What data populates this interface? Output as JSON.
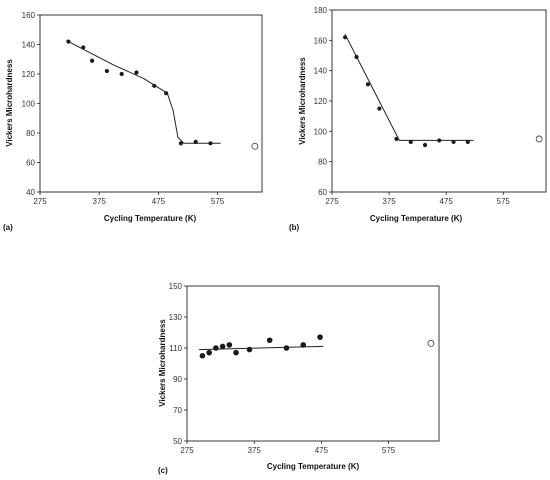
{
  "chart_data": [
    {
      "type": "scatter",
      "panel_label": "(a)",
      "xlabel": "Cycling Temperature (K)",
      "ylabel": "Vickers Microhardness",
      "xlim": [
        275,
        650
      ],
      "ylim": [
        40,
        160
      ],
      "xticks": [
        275,
        375,
        475,
        575
      ],
      "xtick_labels": [
        "275",
        "375",
        "475",
        "575"
      ],
      "yticks": [
        40,
        60,
        80,
        100,
        120,
        140,
        160
      ],
      "ytick_labels": [
        "40",
        "60",
        "80",
        "100",
        "120",
        "140",
        "160"
      ],
      "grid": false,
      "series": [
        {
          "x": [
            323,
            348,
            363,
            388,
            413,
            438,
            468,
            488,
            513,
            538,
            563
          ],
          "y": [
            142,
            138,
            129,
            122,
            120,
            121,
            112,
            107,
            73,
            74,
            73
          ]
        }
      ],
      "trend_line": {
        "x": [
          323,
          400,
          450,
          490,
          500,
          508,
          518,
          580
        ],
        "y": [
          142,
          126,
          117,
          107,
          95,
          77,
          73,
          73
        ]
      },
      "open_marker": {
        "x": 638,
        "y": 71
      }
    },
    {
      "type": "scatter",
      "panel_label": "(b)",
      "xlabel": "Cycling Temperature (K)",
      "ylabel": "Vickers Microhardness",
      "xlim": [
        275,
        650
      ],
      "ylim": [
        60,
        180
      ],
      "xticks": [
        275,
        375,
        475,
        575
      ],
      "xtick_labels": [
        "275",
        "375",
        "475",
        "575"
      ],
      "yticks": [
        60,
        80,
        100,
        120,
        140,
        160,
        180
      ],
      "ytick_labels": [
        "60",
        "80",
        "100",
        "120",
        "140",
        "160",
        "180"
      ],
      "grid": false,
      "series": [
        {
          "x": [
            298,
            318,
            338,
            358,
            388,
            413,
            438,
            463,
            488,
            513
          ],
          "y": [
            162,
            149,
            131,
            115,
            95,
            93,
            91,
            94,
            93,
            93
          ]
        }
      ],
      "trend_line": {
        "x": [
          298,
          393,
          523
        ],
        "y": [
          164,
          94,
          94
        ]
      },
      "open_marker": {
        "x": 638,
        "y": 95
      }
    },
    {
      "type": "scatter",
      "panel_label": "(c)",
      "xlabel": "Cycling Temperature (K)",
      "ylabel": "Vickers Microhardness",
      "xlim": [
        275,
        650
      ],
      "ylim": [
        50,
        150
      ],
      "xticks": [
        275,
        375,
        475,
        575
      ],
      "xtick_labels": [
        "275",
        "375",
        "475",
        "575"
      ],
      "yticks": [
        50,
        70,
        90,
        110,
        130,
        150
      ],
      "ytick_labels": [
        "50",
        "70",
        "90",
        "110",
        "130",
        "150"
      ],
      "grid": false,
      "series": [
        {
          "x": [
            298,
            308,
            318,
            328,
            338,
            348,
            368,
            398,
            423,
            448,
            473
          ],
          "y": [
            105,
            107,
            110,
            111,
            112,
            107,
            109,
            115,
            110,
            112,
            117
          ]
        }
      ],
      "trend_line": {
        "x": [
          293,
          478
        ],
        "y": [
          109,
          111
        ]
      },
      "open_marker": {
        "x": 638,
        "y": 113
      }
    }
  ]
}
